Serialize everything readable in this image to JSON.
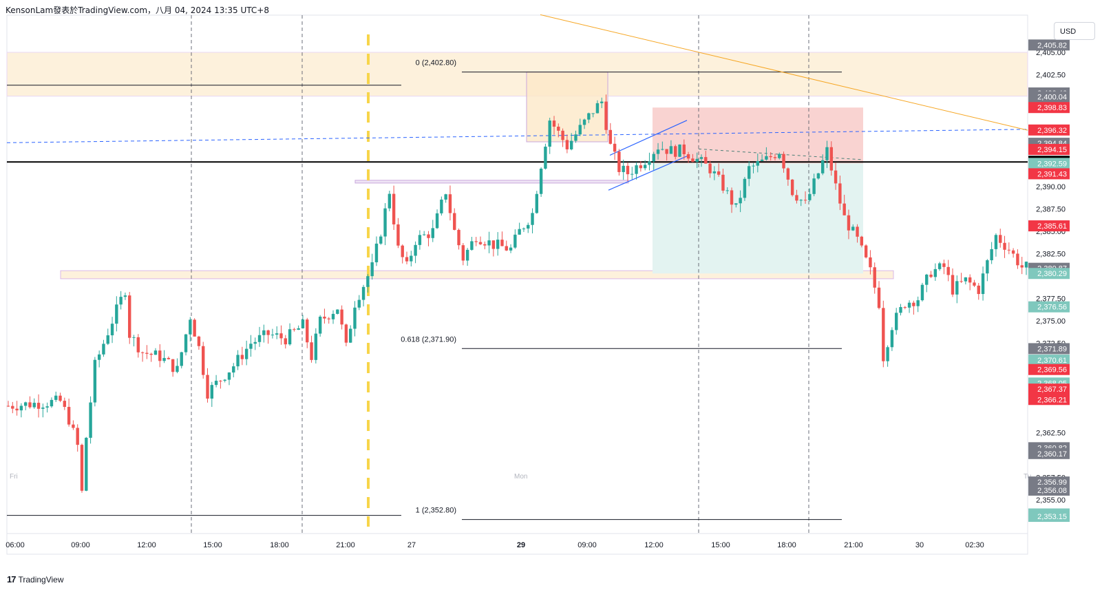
{
  "header": {
    "title": "KensonLam發表於TradingView.com，八月 04, 2024 13:35 UTC+8"
  },
  "currency": "USD",
  "footer": {
    "brand": "TradingView",
    "logo_icon": "tradingview-logo-icon"
  },
  "colors": {
    "up": "#26a69a",
    "down": "#ef5350",
    "zone": "#fdf1dc",
    "zone_border": "#f2c48d",
    "profit": "#e3f3f1",
    "loss": "#f9d3d1",
    "trend": "#f6a623",
    "dash_blue": "#2962ff",
    "grid_dash": "#6a6d78",
    "session": "#f7d54a"
  },
  "chart_data": {
    "type": "candlestick",
    "title": "",
    "y_unit": "USD",
    "ylim": [
      2349.9,
      2407.8
    ],
    "x_ticks": [
      "06:00",
      "09:00",
      "12:00",
      "15:00",
      "18:00",
      "21:00",
      "27",
      "29",
      "09:00",
      "12:00",
      "15:00",
      "18:00",
      "21:00",
      "30",
      "02:30"
    ],
    "bold_x_ticks": [
      "29"
    ],
    "y_ticks": [
      2405.0,
      2402.5,
      2390.0,
      2387.5,
      2385.0,
      2382.5,
      2377.5,
      2375.0,
      2372.5,
      2367.5,
      2362.5,
      2357.5,
      2355.0
    ],
    "day_labels": [
      "Fri",
      "Mon",
      "Tu"
    ],
    "price_labels": [
      {
        "value": 2405.82,
        "color": "#787b86"
      },
      {
        "value": 2400.46,
        "color": "#787b86"
      },
      {
        "value": 2400.04,
        "color": "#787b86"
      },
      {
        "value": 2398.83,
        "color": "#f23645"
      },
      {
        "value": 2396.32,
        "color": "#f23645"
      },
      {
        "value": 2394.84,
        "color": "#787b86"
      },
      {
        "value": 2394.15,
        "color": "#f23645"
      },
      {
        "value": 2392.83,
        "color": "#000000"
      },
      {
        "value": 2392.59,
        "color": "#7fc8bd"
      },
      {
        "value": 2391.43,
        "color": "#f23645"
      },
      {
        "value": 2385.61,
        "color": "#f23645"
      },
      {
        "value": 2380.87,
        "color": "#787b86"
      },
      {
        "value": 2380.29,
        "color": "#7fc8bd"
      },
      {
        "value": 2376.56,
        "color": "#7fc8bd"
      },
      {
        "value": 2371.89,
        "color": "#787b86"
      },
      {
        "value": 2370.61,
        "color": "#7fc8bd"
      },
      {
        "value": 2369.56,
        "color": "#f23645"
      },
      {
        "value": 2368.05,
        "color": "#7fc8bd"
      },
      {
        "value": 2367.37,
        "color": "#f23645"
      },
      {
        "value": 2366.21,
        "color": "#f23645"
      },
      {
        "value": 2360.82,
        "color": "#787b86"
      },
      {
        "value": 2360.17,
        "color": "#787b86"
      },
      {
        "value": 2356.99,
        "color": "#787b86"
      },
      {
        "value": 2356.08,
        "color": "#787b86"
      },
      {
        "value": 2353.42,
        "color": "#7fc8bd"
      },
      {
        "value": 2353.15,
        "color": "#7fc8bd"
      }
    ],
    "fib_levels": [
      {
        "label": "0 (2,402.80)",
        "value": 2402.8
      },
      {
        "label": "0.618 (2,371.90)",
        "value": 2371.9
      },
      {
        "label": "1 (2,352.80)",
        "value": 2352.8
      }
    ],
    "horizontal_line": 2392.83,
    "blue_dashed_level": [
      2394.9,
      2396.4
    ],
    "zones": [
      {
        "kind": "supply",
        "top": 2405.0,
        "bottom": 2400.1
      },
      {
        "kind": "demand",
        "top": 2380.6,
        "bottom": 2379.7
      },
      {
        "kind": "range",
        "top": 2390.7,
        "bottom": 2390.4
      },
      {
        "kind": "consolidation",
        "top": 2402.8,
        "bottom": 2395.0
      }
    ],
    "position": {
      "entry": 2392.59,
      "stop": 2398.83,
      "target": 2380.29
    },
    "trend_line": [
      2409.2,
      2396.3
    ],
    "candle_path": [
      [
        0,
        2365.5
      ],
      [
        7,
        2365.8
      ],
      [
        12,
        2366.0
      ],
      [
        14,
        2364.0
      ],
      [
        16,
        2361.0
      ],
      [
        17,
        2355.8
      ],
      [
        18,
        2362.0
      ],
      [
        20,
        2370.0
      ],
      [
        24,
        2375.0
      ],
      [
        27,
        2378.5
      ],
      [
        28,
        2373.5
      ],
      [
        31,
        2371.5
      ],
      [
        35,
        2371.0
      ],
      [
        39,
        2369.5
      ],
      [
        42,
        2375.5
      ],
      [
        44,
        2372.0
      ],
      [
        46,
        2367.0
      ],
      [
        48,
        2368.0
      ],
      [
        52,
        2370.0
      ],
      [
        56,
        2372.5
      ],
      [
        60,
        2373.5
      ],
      [
        64,
        2373.0
      ],
      [
        68,
        2374.5
      ],
      [
        70,
        2371.0
      ],
      [
        72,
        2375.0
      ],
      [
        76,
        2376.5
      ],
      [
        78,
        2372.0
      ],
      [
        80,
        2377.0
      ],
      [
        84,
        2381.0
      ],
      [
        86,
        2385.0
      ],
      [
        88,
        2389.5
      ],
      [
        90,
        2383.0
      ],
      [
        92,
        2381.0
      ],
      [
        94,
        2384.0
      ],
      [
        98,
        2385.0
      ],
      [
        101,
        2389.5
      ],
      [
        103,
        2385.0
      ],
      [
        105,
        2382.0
      ],
      [
        108,
        2384.5
      ],
      [
        112,
        2383.5
      ],
      [
        116,
        2383.0
      ],
      [
        118,
        2385.0
      ],
      [
        121,
        2387.0
      ],
      [
        123,
        2392.5
      ],
      [
        125,
        2397.5
      ],
      [
        127,
        2396.0
      ],
      [
        129,
        2394.5
      ],
      [
        132,
        2396.5
      ],
      [
        135,
        2398.5
      ],
      [
        137,
        2399.5
      ],
      [
        139,
        2394.5
      ],
      [
        141,
        2392.0
      ],
      [
        143,
        2391.5
      ],
      [
        147,
        2393.0
      ],
      [
        150,
        2394.5
      ],
      [
        153,
        2394.0
      ],
      [
        156,
        2394.0
      ],
      [
        159,
        2393.0
      ],
      [
        162,
        2392.0
      ],
      [
        165,
        2390.0
      ],
      [
        168,
        2387.5
      ],
      [
        171,
        2392.0
      ],
      [
        175,
        2393.0
      ],
      [
        178,
        2394.0
      ],
      [
        181,
        2389.5
      ],
      [
        184,
        2388.0
      ],
      [
        187,
        2391.5
      ],
      [
        189,
        2394.0
      ],
      [
        191,
        2390.0
      ],
      [
        193,
        2386.5
      ],
      [
        196,
        2384.0
      ],
      [
        199,
        2380.5
      ],
      [
        201,
        2377.0
      ],
      [
        202,
        2371.0
      ],
      [
        204,
        2374.5
      ],
      [
        207,
        2377.0
      ],
      [
        210,
        2377.5
      ],
      [
        213,
        2380.5
      ],
      [
        216,
        2381.0
      ],
      [
        218,
        2378.5
      ],
      [
        221,
        2379.5
      ],
      [
        224,
        2378.5
      ],
      [
        226,
        2381.5
      ],
      [
        228,
        2384.5
      ],
      [
        231,
        2383.0
      ],
      [
        234,
        2381.0
      ]
    ],
    "candle_count": 236,
    "grid": "dashed day/session separators"
  }
}
